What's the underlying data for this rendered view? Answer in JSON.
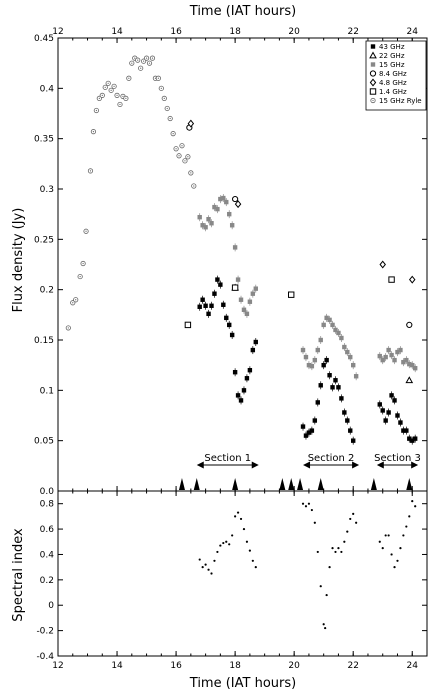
{
  "chart_data": [
    {
      "type": "scatter",
      "name": "flux-density-panel",
      "xlabel_top": "Time (IAT hours)",
      "ylabel": "Flux density (Jy)",
      "xlim": [
        12,
        24.5
      ],
      "ylim": [
        0,
        0.45
      ],
      "xticks": [
        "12",
        "14",
        "16",
        "18",
        "20",
        "22",
        "24"
      ],
      "xtick_values": [
        12,
        14,
        16,
        18,
        20,
        22,
        24
      ],
      "yticks": [
        "0.0",
        "0.05",
        "0.1",
        "0.15",
        "0.2",
        "0.25",
        "0.3",
        "0.35",
        "0.4",
        "0.45"
      ],
      "ytick_values": [
        0,
        0.05,
        0.1,
        0.15,
        0.2,
        0.25,
        0.3,
        0.35,
        0.4,
        0.45
      ],
      "legend_position": "top-right",
      "legend": [
        {
          "label": "43 GHz",
          "marker": "filled-square",
          "color": "#000000"
        },
        {
          "label": "22 GHz",
          "marker": "open-triangle",
          "color": "#000000"
        },
        {
          "label": "15 GHz",
          "marker": "filled-square",
          "color": "#888888"
        },
        {
          "label": "8.4 GHz",
          "marker": "open-circle",
          "color": "#000000"
        },
        {
          "label": "4.8 GHz",
          "marker": "open-diamond",
          "color": "#000000"
        },
        {
          "label": "1.4 GHz",
          "marker": "open-square",
          "color": "#000000"
        },
        {
          "label": "15 GHz Ryle",
          "marker": "dotted-circle",
          "color": "#666666"
        }
      ],
      "sections": [
        {
          "label": "Section 1",
          "start": 16.7,
          "end": 18.8
        },
        {
          "label": "Section 2",
          "start": 20.3,
          "end": 22.2
        },
        {
          "label": "Section 3",
          "start": 22.8,
          "end": 24.2
        }
      ],
      "triangle_markers_x": [
        16.2,
        16.7,
        18.0,
        19.6,
        19.9,
        20.2,
        20.9,
        22.7,
        23.9
      ],
      "series": [
        {
          "name": "15 GHz Ryle",
          "points": [
            [
              12.35,
              0.162
            ],
            [
              12.5,
              0.187
            ],
            [
              12.6,
              0.19
            ],
            [
              12.75,
              0.213
            ],
            [
              12.85,
              0.226
            ],
            [
              12.95,
              0.258
            ],
            [
              13.1,
              0.318
            ],
            [
              13.2,
              0.357
            ],
            [
              13.3,
              0.378
            ],
            [
              13.4,
              0.39
            ],
            [
              13.5,
              0.393
            ],
            [
              13.6,
              0.401
            ],
            [
              13.7,
              0.405
            ],
            [
              13.8,
              0.398
            ],
            [
              13.9,
              0.402
            ],
            [
              14.0,
              0.393
            ],
            [
              14.1,
              0.384
            ],
            [
              14.2,
              0.392
            ],
            [
              14.3,
              0.39
            ],
            [
              14.4,
              0.41
            ],
            [
              14.5,
              0.425
            ],
            [
              14.6,
              0.43
            ],
            [
              14.7,
              0.428
            ],
            [
              14.8,
              0.42
            ],
            [
              14.9,
              0.427
            ],
            [
              15.0,
              0.43
            ],
            [
              15.1,
              0.425
            ],
            [
              15.2,
              0.43
            ],
            [
              15.3,
              0.41
            ],
            [
              15.4,
              0.41
            ],
            [
              15.5,
              0.4
            ],
            [
              15.6,
              0.39
            ],
            [
              15.7,
              0.38
            ],
            [
              15.8,
              0.37
            ],
            [
              15.9,
              0.355
            ],
            [
              16.0,
              0.34
            ],
            [
              16.1,
              0.333
            ],
            [
              16.2,
              0.343
            ],
            [
              16.3,
              0.328
            ],
            [
              16.4,
              0.332
            ],
            [
              16.5,
              0.316
            ],
            [
              16.6,
              0.303
            ]
          ]
        },
        {
          "name": "15 GHz",
          "points": [
            [
              16.8,
              0.272
            ],
            [
              16.9,
              0.264
            ],
            [
              17.0,
              0.262
            ],
            [
              17.1,
              0.27
            ],
            [
              17.2,
              0.266
            ],
            [
              17.3,
              0.282
            ],
            [
              17.4,
              0.28
            ],
            [
              17.5,
              0.29
            ],
            [
              17.6,
              0.291
            ],
            [
              17.7,
              0.287
            ],
            [
              17.8,
              0.275
            ],
            [
              17.9,
              0.264
            ],
            [
              18.0,
              0.242
            ],
            [
              18.1,
              0.21
            ],
            [
              18.2,
              0.19
            ],
            [
              18.3,
              0.18
            ],
            [
              18.4,
              0.176
            ],
            [
              18.5,
              0.188
            ],
            [
              18.6,
              0.196
            ],
            [
              18.7,
              0.201
            ],
            [
              20.3,
              0.14
            ],
            [
              20.4,
              0.133
            ],
            [
              20.5,
              0.125
            ],
            [
              20.6,
              0.124
            ],
            [
              20.7,
              0.13
            ],
            [
              20.8,
              0.14
            ],
            [
              20.9,
              0.15
            ],
            [
              21.0,
              0.165
            ],
            [
              21.1,
              0.172
            ],
            [
              21.2,
              0.17
            ],
            [
              21.3,
              0.165
            ],
            [
              21.4,
              0.16
            ],
            [
              21.5,
              0.157
            ],
            [
              21.6,
              0.152
            ],
            [
              21.7,
              0.143
            ],
            [
              21.8,
              0.138
            ],
            [
              21.9,
              0.133
            ],
            [
              22.0,
              0.125
            ],
            [
              22.1,
              0.114
            ],
            [
              22.9,
              0.134
            ],
            [
              23.0,
              0.13
            ],
            [
              23.1,
              0.133
            ],
            [
              23.2,
              0.14
            ],
            [
              23.3,
              0.135
            ],
            [
              23.4,
              0.13
            ],
            [
              23.5,
              0.138
            ],
            [
              23.6,
              0.14
            ],
            [
              23.7,
              0.128
            ],
            [
              23.8,
              0.13
            ],
            [
              23.9,
              0.126
            ],
            [
              24.0,
              0.125
            ],
            [
              24.1,
              0.122
            ]
          ]
        },
        {
          "name": "43 GHz",
          "points": [
            [
              16.8,
              0.183
            ],
            [
              16.9,
              0.19
            ],
            [
              17.0,
              0.184
            ],
            [
              17.1,
              0.176
            ],
            [
              17.2,
              0.184
            ],
            [
              17.3,
              0.196
            ],
            [
              17.4,
              0.21
            ],
            [
              17.5,
              0.205
            ],
            [
              17.6,
              0.185
            ],
            [
              17.7,
              0.172
            ],
            [
              17.8,
              0.165
            ],
            [
              17.9,
              0.155
            ],
            [
              18.0,
              0.118
            ],
            [
              18.1,
              0.095
            ],
            [
              18.2,
              0.09
            ],
            [
              18.3,
              0.1
            ],
            [
              18.4,
              0.112
            ],
            [
              18.5,
              0.12
            ],
            [
              18.6,
              0.14
            ],
            [
              18.7,
              0.148
            ],
            [
              20.3,
              0.064
            ],
            [
              20.4,
              0.055
            ],
            [
              20.5,
              0.058
            ],
            [
              20.6,
              0.06
            ],
            [
              20.7,
              0.07
            ],
            [
              20.8,
              0.088
            ],
            [
              20.9,
              0.105
            ],
            [
              21.0,
              0.125
            ],
            [
              21.1,
              0.13
            ],
            [
              21.2,
              0.115
            ],
            [
              21.3,
              0.103
            ],
            [
              21.4,
              0.11
            ],
            [
              21.5,
              0.103
            ],
            [
              21.6,
              0.092
            ],
            [
              21.7,
              0.078
            ],
            [
              21.8,
              0.07
            ],
            [
              21.9,
              0.06
            ],
            [
              22.0,
              0.05
            ],
            [
              22.9,
              0.086
            ],
            [
              23.0,
              0.08
            ],
            [
              23.1,
              0.07
            ],
            [
              23.2,
              0.078
            ],
            [
              23.3,
              0.095
            ],
            [
              23.4,
              0.09
            ],
            [
              23.5,
              0.075
            ],
            [
              23.6,
              0.068
            ],
            [
              23.7,
              0.06
            ],
            [
              23.8,
              0.06
            ],
            [
              23.9,
              0.052
            ],
            [
              24.0,
              0.05
            ],
            [
              24.1,
              0.052
            ]
          ]
        },
        {
          "name": "22 GHz",
          "points": [
            [
              18.0,
              0.202
            ],
            [
              23.9,
              0.11
            ]
          ]
        },
        {
          "name": "8.4 GHz",
          "points": [
            [
              16.45,
              0.361
            ],
            [
              18.0,
              0.29
            ],
            [
              23.9,
              0.165
            ]
          ]
        },
        {
          "name": "4.8 GHz",
          "points": [
            [
              16.5,
              0.365
            ],
            [
              18.1,
              0.285
            ],
            [
              23.0,
              0.225
            ],
            [
              24.0,
              0.21
            ]
          ]
        },
        {
          "name": "1.4 GHz",
          "points": [
            [
              16.4,
              0.165
            ],
            [
              18.0,
              0.202
            ],
            [
              19.9,
              0.195
            ],
            [
              23.3,
              0.21
            ]
          ]
        }
      ]
    },
    {
      "type": "scatter",
      "name": "spectral-index-panel",
      "xlabel": "Time (IAT hours)",
      "ylabel": "Spectral index",
      "xlim": [
        12,
        24.5
      ],
      "ylim": [
        -0.4,
        0.9
      ],
      "xticks": [
        "12",
        "14",
        "16",
        "18",
        "20",
        "22",
        "24"
      ],
      "xtick_values": [
        12,
        14,
        16,
        18,
        20,
        22,
        24
      ],
      "yticks": [
        "-0.4",
        "-0.2",
        "0",
        "0.2",
        "0.4",
        "0.6",
        "0.8"
      ],
      "ytick_values": [
        -0.4,
        -0.2,
        0,
        0.2,
        0.4,
        0.6,
        0.8
      ],
      "series": [
        {
          "name": "spectral index",
          "points": [
            [
              16.8,
              0.36
            ],
            [
              16.9,
              0.3
            ],
            [
              17.0,
              0.32
            ],
            [
              17.1,
              0.28
            ],
            [
              17.2,
              0.25
            ],
            [
              17.3,
              0.35
            ],
            [
              17.4,
              0.42
            ],
            [
              17.5,
              0.47
            ],
            [
              17.6,
              0.49
            ],
            [
              17.7,
              0.5
            ],
            [
              17.8,
              0.48
            ],
            [
              17.9,
              0.55
            ],
            [
              18.0,
              0.7
            ],
            [
              18.1,
              0.73
            ],
            [
              18.2,
              0.68
            ],
            [
              18.3,
              0.6
            ],
            [
              18.4,
              0.5
            ],
            [
              18.5,
              0.43
            ],
            [
              18.6,
              0.35
            ],
            [
              18.7,
              0.3
            ],
            [
              20.3,
              0.8
            ],
            [
              20.4,
              0.78
            ],
            [
              20.5,
              0.8
            ],
            [
              20.6,
              0.75
            ],
            [
              20.7,
              0.65
            ],
            [
              20.8,
              0.42
            ],
            [
              20.9,
              0.15
            ],
            [
              21.0,
              -0.15
            ],
            [
              21.05,
              -0.18
            ],
            [
              21.1,
              0.08
            ],
            [
              21.2,
              0.3
            ],
            [
              21.3,
              0.45
            ],
            [
              21.4,
              0.42
            ],
            [
              21.5,
              0.45
            ],
            [
              21.6,
              0.42
            ],
            [
              21.7,
              0.5
            ],
            [
              21.8,
              0.58
            ],
            [
              21.9,
              0.68
            ],
            [
              22.0,
              0.72
            ],
            [
              22.1,
              0.65
            ],
            [
              22.9,
              0.5
            ],
            [
              23.0,
              0.45
            ],
            [
              23.1,
              0.55
            ],
            [
              23.2,
              0.55
            ],
            [
              23.3,
              0.4
            ],
            [
              23.4,
              0.3
            ],
            [
              23.5,
              0.35
            ],
            [
              23.6,
              0.45
            ],
            [
              23.7,
              0.55
            ],
            [
              23.8,
              0.62
            ],
            [
              23.9,
              0.7
            ],
            [
              24.0,
              0.82
            ],
            [
              24.1,
              0.78
            ]
          ]
        }
      ]
    }
  ]
}
